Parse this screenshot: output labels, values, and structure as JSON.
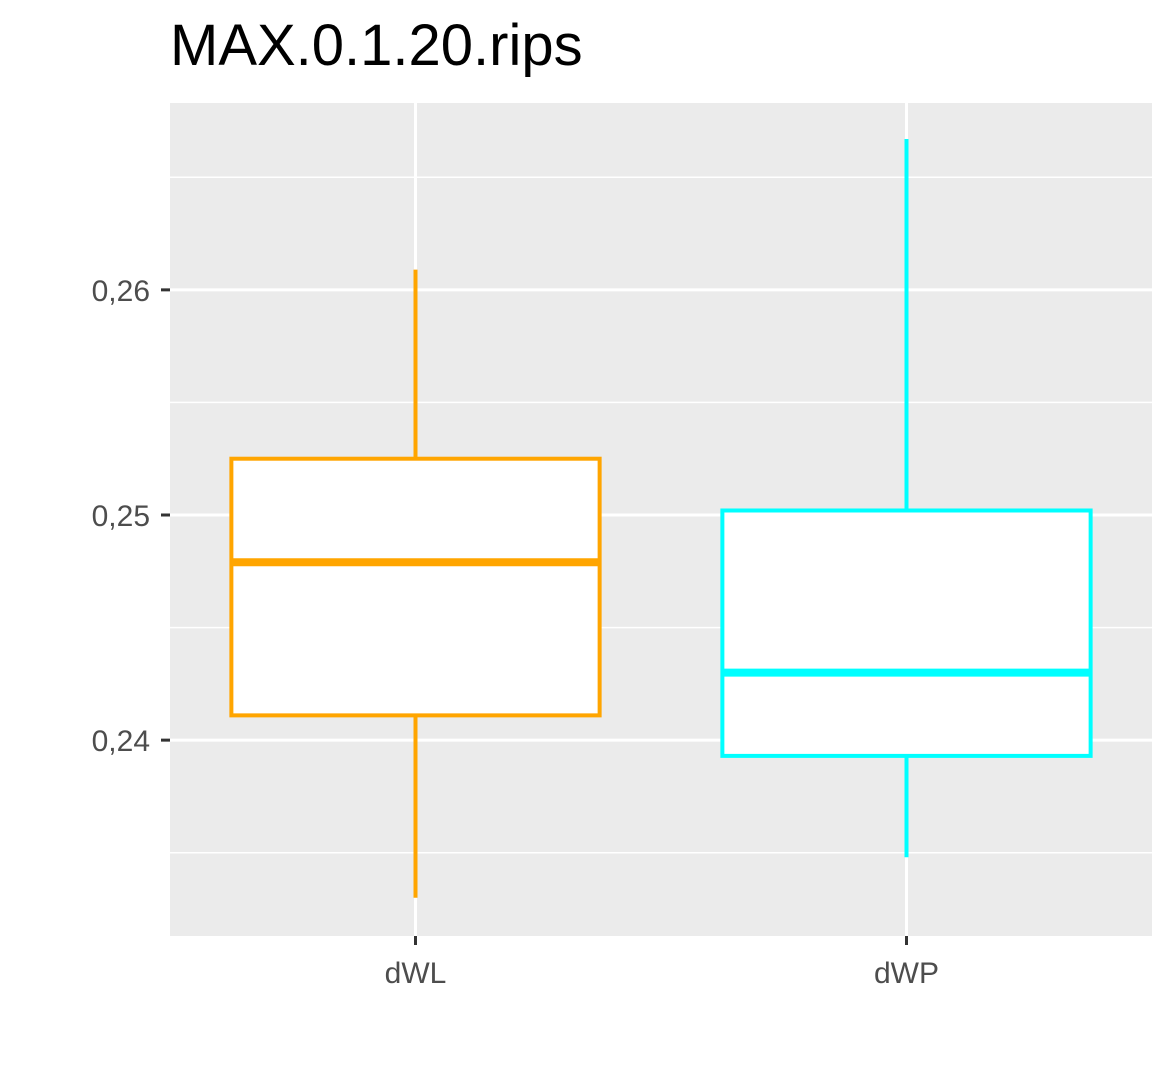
{
  "chart_data": {
    "type": "boxplot",
    "title": "MAX.0.1.20.rips",
    "xlabel": "",
    "ylabel": "",
    "categories": [
      "dWL",
      "dWP"
    ],
    "boxes": [
      {
        "category": "dWL",
        "min": 0.233,
        "q1": 0.2411,
        "median": 0.2479,
        "q3": 0.2525,
        "max": 0.2609,
        "color": "#FFA500"
      },
      {
        "category": "dWP",
        "min": 0.2348,
        "q1": 0.2393,
        "median": 0.243,
        "q3": 0.2502,
        "max": 0.2667,
        "color": "#00FFFF"
      }
    ],
    "y_ticks": [
      0.24,
      0.25,
      0.26
    ],
    "y_tick_labels": [
      "0,24",
      "0,25",
      "0,26"
    ],
    "ylim": [
      0.2313,
      0.2683
    ],
    "grid": true,
    "panel_background": "#EBEBEB",
    "grid_color": "#FFFFFF"
  }
}
